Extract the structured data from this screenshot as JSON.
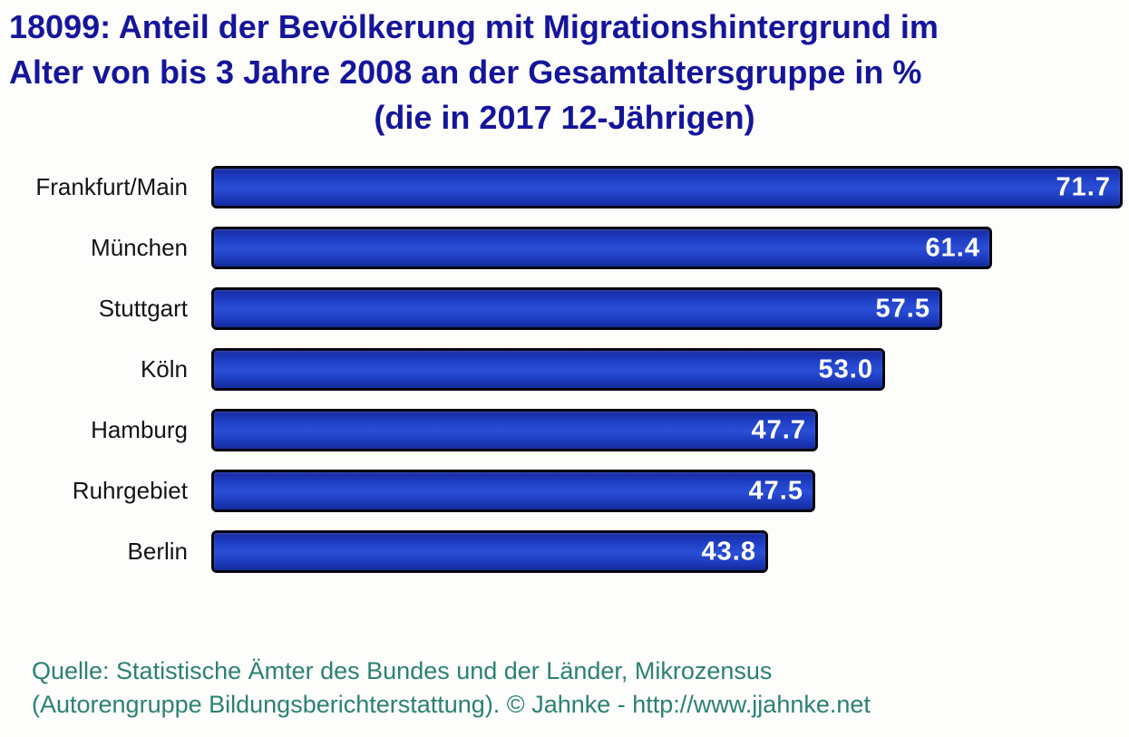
{
  "title": {
    "line1": "18099: Anteil der Bevölkerung mit Migrationshintergrund im",
    "line2": "Alter von bis 3 Jahre 2008 an der Gesamtaltersgruppe in %",
    "line3": "(die in 2017 12-Jährigen)"
  },
  "chart_data": {
    "type": "bar",
    "orientation": "horizontal",
    "title": "18099: Anteil der Bevölkerung mit Migrationshintergrund im Alter von bis 3 Jahre 2008 an der Gesamtaltersgruppe in % (die in 2017 12-Jährigen)",
    "categories": [
      "Frankfurt/Main",
      "München",
      "Stuttgart",
      "Köln",
      "Hamburg",
      "Ruhrgebiet",
      "Berlin"
    ],
    "values": [
      71.7,
      61.4,
      57.5,
      53.0,
      47.7,
      47.5,
      43.8
    ],
    "value_labels": [
      "71.7",
      "61.4",
      "57.5",
      "53.0",
      "47.7",
      "47.5",
      "43.8"
    ],
    "xlabel": "",
    "ylabel": "",
    "xlim": [
      0,
      72.2
    ],
    "grid": false,
    "legend": null,
    "bar_color": "#1e3fc5",
    "bar_border_color": "#06060f",
    "value_label_color": "#ffffff",
    "category_label_color": "#141414"
  },
  "source": {
    "line1": "Quelle: Statistische Ämter des Bundes und der Länder, Mikrozensus",
    "line2": "(Autorengruppe Bildungsberichterstattung). © Jahnke - http://www.jjahnke.net"
  },
  "colors": {
    "title": "#15159b",
    "source": "#2b8173",
    "background": "#fdfdfb"
  }
}
